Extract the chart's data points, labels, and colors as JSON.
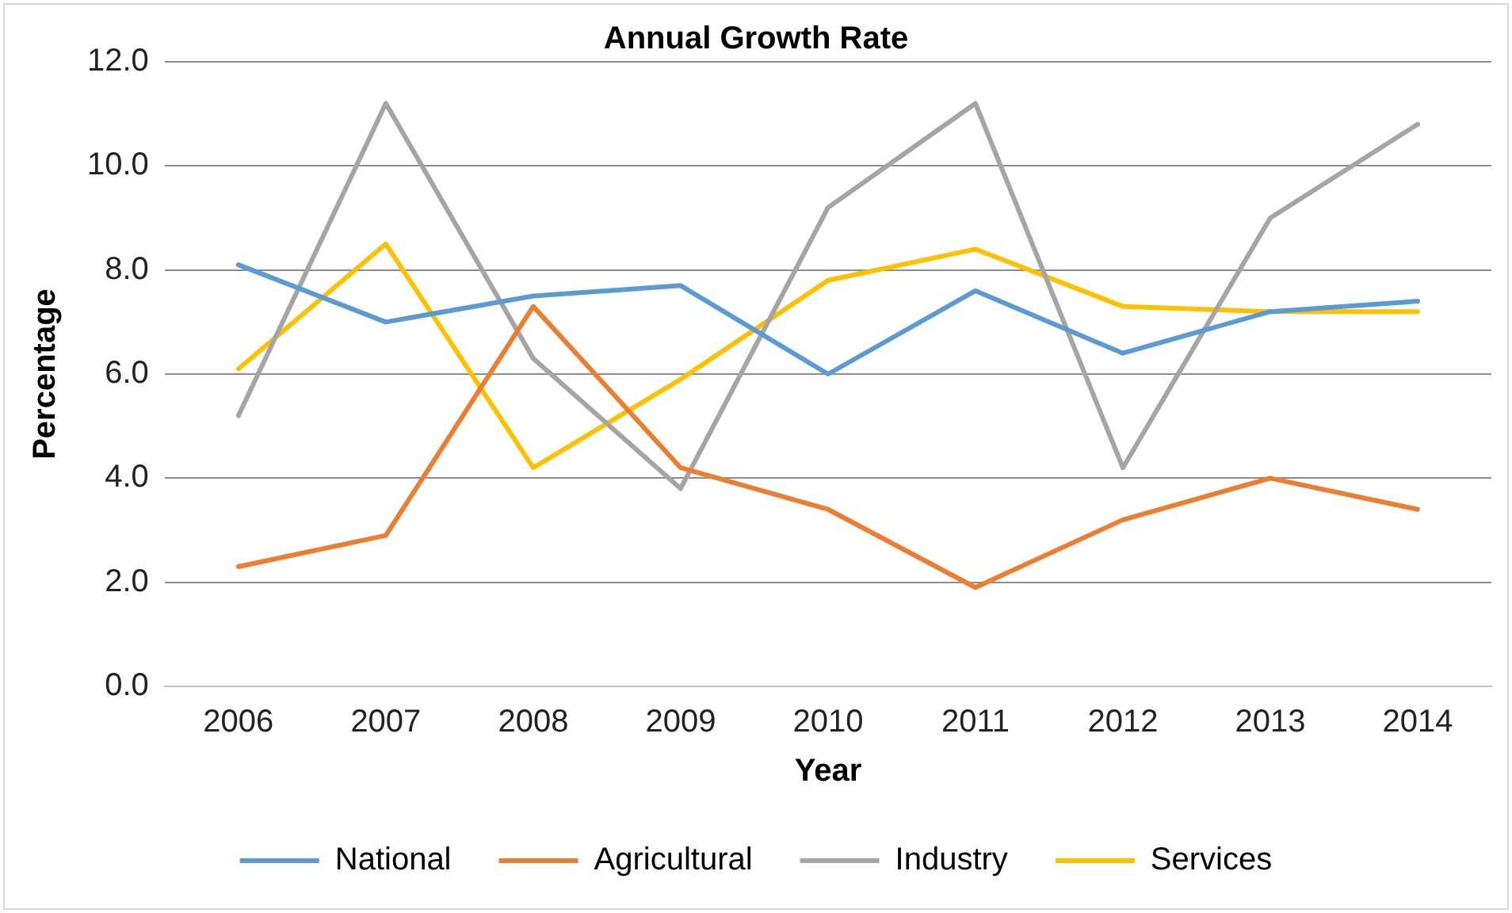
{
  "chart_data": {
    "type": "line",
    "title": "Annual Growth Rate",
    "xlabel": "Year",
    "ylabel": "Percentage",
    "categories": [
      "2006",
      "2007",
      "2008",
      "2009",
      "2010",
      "2011",
      "2012",
      "2013",
      "2014"
    ],
    "series": [
      {
        "name": "National",
        "color": "#5b9bd5",
        "values": [
          8.1,
          7.0,
          7.5,
          7.7,
          6.0,
          7.6,
          6.4,
          7.2,
          7.4
        ]
      },
      {
        "name": "Agricultural",
        "color": "#ed7d31",
        "values": [
          2.3,
          2.9,
          7.3,
          4.2,
          3.4,
          1.9,
          3.2,
          4.0,
          3.4
        ]
      },
      {
        "name": "Industry",
        "color": "#a5a5a5",
        "values": [
          5.2,
          11.2,
          6.3,
          3.8,
          9.2,
          11.2,
          4.2,
          9.0,
          10.8
        ]
      },
      {
        "name": "Services",
        "color": "#ffc000",
        "values": [
          6.1,
          8.5,
          4.2,
          5.9,
          7.8,
          8.4,
          7.3,
          7.2,
          7.2
        ]
      }
    ],
    "ylim": [
      0,
      12
    ],
    "yticks": [
      {
        "value": 0,
        "label": "0.0"
      },
      {
        "value": 2,
        "label": "2.0"
      },
      {
        "value": 4,
        "label": "4.0"
      },
      {
        "value": 6,
        "label": "6.0"
      },
      {
        "value": 8,
        "label": "8.0"
      },
      {
        "value": 10,
        "label": "10.0"
      },
      {
        "value": 12,
        "label": "12.0"
      }
    ],
    "grid": "y",
    "legend": "bottom",
    "marker": "none",
    "line_style": "solid"
  }
}
